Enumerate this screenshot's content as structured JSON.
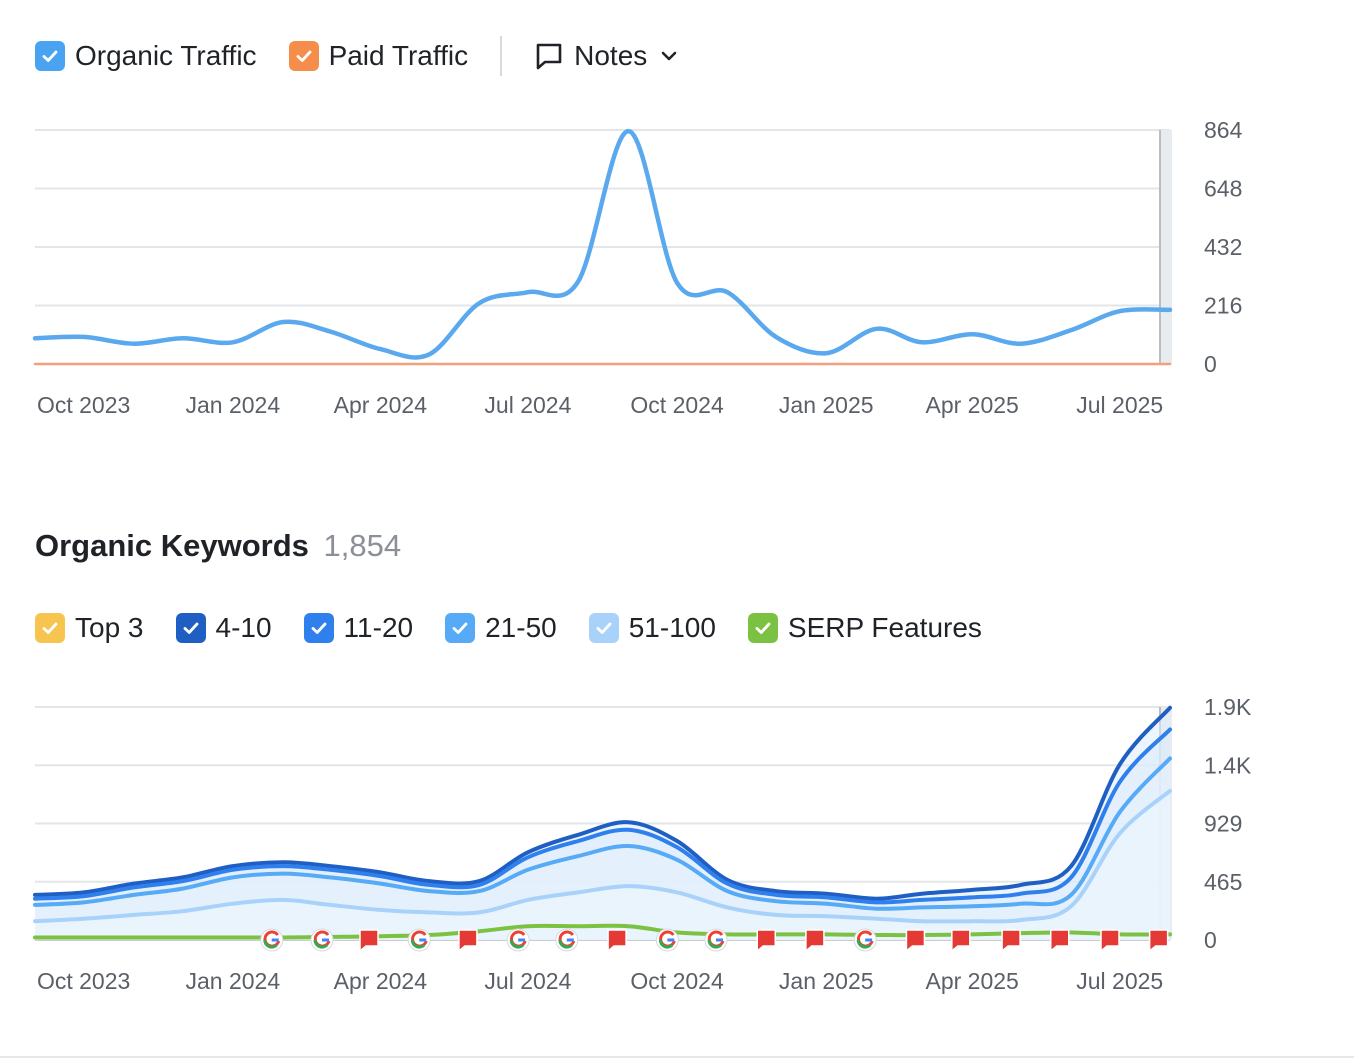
{
  "traffic_legend": {
    "organic": {
      "label": "Organic Traffic",
      "color": "#4aa3f0"
    },
    "paid": {
      "label": "Paid Traffic",
      "color": "#f58d4b"
    },
    "notes": {
      "label": "Notes",
      "icon": "comment-icon",
      "caret": "chevron-down-icon"
    }
  },
  "keywords": {
    "title": "Organic Keywords",
    "count": "1,854"
  },
  "keywords_legend": [
    {
      "label": "Top 3",
      "color": "#f7c44f"
    },
    {
      "label": "4-10",
      "color": "#1f5fc4"
    },
    {
      "label": "11-20",
      "color": "#2f80ed"
    },
    {
      "label": "21-50",
      "color": "#57aaf5"
    },
    {
      "label": "51-100",
      "color": "#a8d2fa"
    },
    {
      "label": "SERP Features",
      "color": "#7cc242"
    }
  ],
  "chart_data": [
    {
      "type": "line",
      "x_ticks": [
        "Oct 2023",
        "Jan 2024",
        "Apr 2024",
        "Jul 2024",
        "Oct 2024",
        "Jan 2025",
        "Apr 2025",
        "Jul 2025"
      ],
      "y_ticks": [
        "864",
        "648",
        "432",
        "216",
        "0"
      ],
      "ylim": [
        0,
        864
      ],
      "grid": true,
      "x_start": "2023-09",
      "x_end": "2025-08",
      "series": [
        {
          "name": "Organic Traffic",
          "color": "#5aa9ee",
          "points": [
            [
              "2023-09-01",
              95
            ],
            [
              "2023-10-01",
              100
            ],
            [
              "2023-11-01",
              75
            ],
            [
              "2023-12-01",
              95
            ],
            [
              "2024-01-01",
              80
            ],
            [
              "2024-02-01",
              155
            ],
            [
              "2024-03-01",
              120
            ],
            [
              "2024-04-01",
              55
            ],
            [
              "2024-05-01",
              35
            ],
            [
              "2024-06-01",
              225
            ],
            [
              "2024-07-01",
              265
            ],
            [
              "2024-08-01",
              305
            ],
            [
              "2024-09-01",
              860
            ],
            [
              "2024-10-01",
              300
            ],
            [
              "2024-11-01",
              265
            ],
            [
              "2024-12-01",
              100
            ],
            [
              "2025-01-01",
              40
            ],
            [
              "2025-02-01",
              130
            ],
            [
              "2025-03-01",
              80
            ],
            [
              "2025-04-01",
              110
            ],
            [
              "2025-05-01",
              75
            ],
            [
              "2025-06-01",
              125
            ],
            [
              "2025-07-01",
              195
            ],
            [
              "2025-08-01",
              200
            ]
          ]
        },
        {
          "name": "Paid Traffic",
          "color": "#f3a07a",
          "points": [
            [
              "2023-09-01",
              0
            ],
            [
              "2025-08-01",
              0
            ]
          ]
        }
      ]
    },
    {
      "type": "area",
      "x_ticks": [
        "Oct 2023",
        "Jan 2024",
        "Apr 2024",
        "Jul 2024",
        "Oct 2024",
        "Jan 2025",
        "Apr 2025",
        "Jul 2025"
      ],
      "y_ticks": [
        "1.9K",
        "1.4K",
        "929",
        "465",
        "0"
      ],
      "ylim": [
        0,
        1860
      ],
      "grid": true,
      "x": [
        "2023-09-01",
        "2023-10-01",
        "2023-11-01",
        "2023-12-01",
        "2024-01-01",
        "2024-02-01",
        "2024-03-01",
        "2024-04-01",
        "2024-05-01",
        "2024-06-01",
        "2024-07-01",
        "2024-08-01",
        "2024-09-01",
        "2024-10-01",
        "2024-11-01",
        "2024-12-01",
        "2025-01-01",
        "2025-02-01",
        "2025-03-01",
        "2025-04-01",
        "2025-05-01",
        "2025-06-01",
        "2025-07-01",
        "2025-08-01"
      ],
      "series": [
        {
          "name": "4-10",
          "color": "#1f5fc4",
          "values": [
            360,
            380,
            450,
            500,
            590,
            620,
            590,
            540,
            470,
            470,
            700,
            840,
            940,
            790,
            480,
            390,
            370,
            330,
            370,
            400,
            440,
            590,
            1400,
            1854
          ]
        },
        {
          "name": "11-20",
          "color": "#2f80ed",
          "values": [
            330,
            350,
            420,
            470,
            560,
            590,
            560,
            510,
            440,
            440,
            660,
            790,
            880,
            740,
            450,
            360,
            340,
            300,
            320,
            340,
            370,
            500,
            1260,
            1680
          ]
        },
        {
          "name": "21-50",
          "color": "#57aaf5",
          "values": [
            280,
            300,
            360,
            410,
            500,
            530,
            500,
            450,
            390,
            390,
            560,
            670,
            750,
            640,
            390,
            310,
            290,
            250,
            260,
            270,
            290,
            360,
            1020,
            1450
          ]
        },
        {
          "name": "51-100",
          "color": "#a8d2fa",
          "values": [
            150,
            170,
            200,
            230,
            290,
            320,
            280,
            240,
            220,
            220,
            320,
            380,
            430,
            380,
            260,
            200,
            190,
            170,
            150,
            150,
            160,
            270,
            850,
            1190
          ]
        },
        {
          "name": "SERP Features",
          "color": "#7cc242",
          "values": [
            20,
            20,
            20,
            20,
            20,
            20,
            25,
            30,
            40,
            70,
            110,
            110,
            110,
            60,
            45,
            45,
            45,
            40,
            40,
            45,
            55,
            60,
            45,
            45
          ]
        }
      ],
      "serp_markers": [
        {
          "date": "2024-01-25",
          "type": "google"
        },
        {
          "date": "2024-02-25",
          "type": "google"
        },
        {
          "date": "2024-03-25",
          "type": "flag"
        },
        {
          "date": "2024-04-25",
          "type": "google"
        },
        {
          "date": "2024-05-25",
          "type": "flag"
        },
        {
          "date": "2024-06-25",
          "type": "google"
        },
        {
          "date": "2024-07-25",
          "type": "google"
        },
        {
          "date": "2024-08-25",
          "type": "flag"
        },
        {
          "date": "2024-09-25",
          "type": "google"
        },
        {
          "date": "2024-10-25",
          "type": "google"
        },
        {
          "date": "2024-11-25",
          "type": "flag"
        },
        {
          "date": "2024-12-25",
          "type": "flag"
        },
        {
          "date": "2025-01-25",
          "type": "google"
        },
        {
          "date": "2025-02-25",
          "type": "flag"
        },
        {
          "date": "2025-03-25",
          "type": "flag"
        },
        {
          "date": "2025-04-25",
          "type": "flag"
        },
        {
          "date": "2025-05-25",
          "type": "flag"
        },
        {
          "date": "2025-06-25",
          "type": "flag"
        },
        {
          "date": "2025-07-25",
          "type": "flag"
        }
      ]
    }
  ]
}
